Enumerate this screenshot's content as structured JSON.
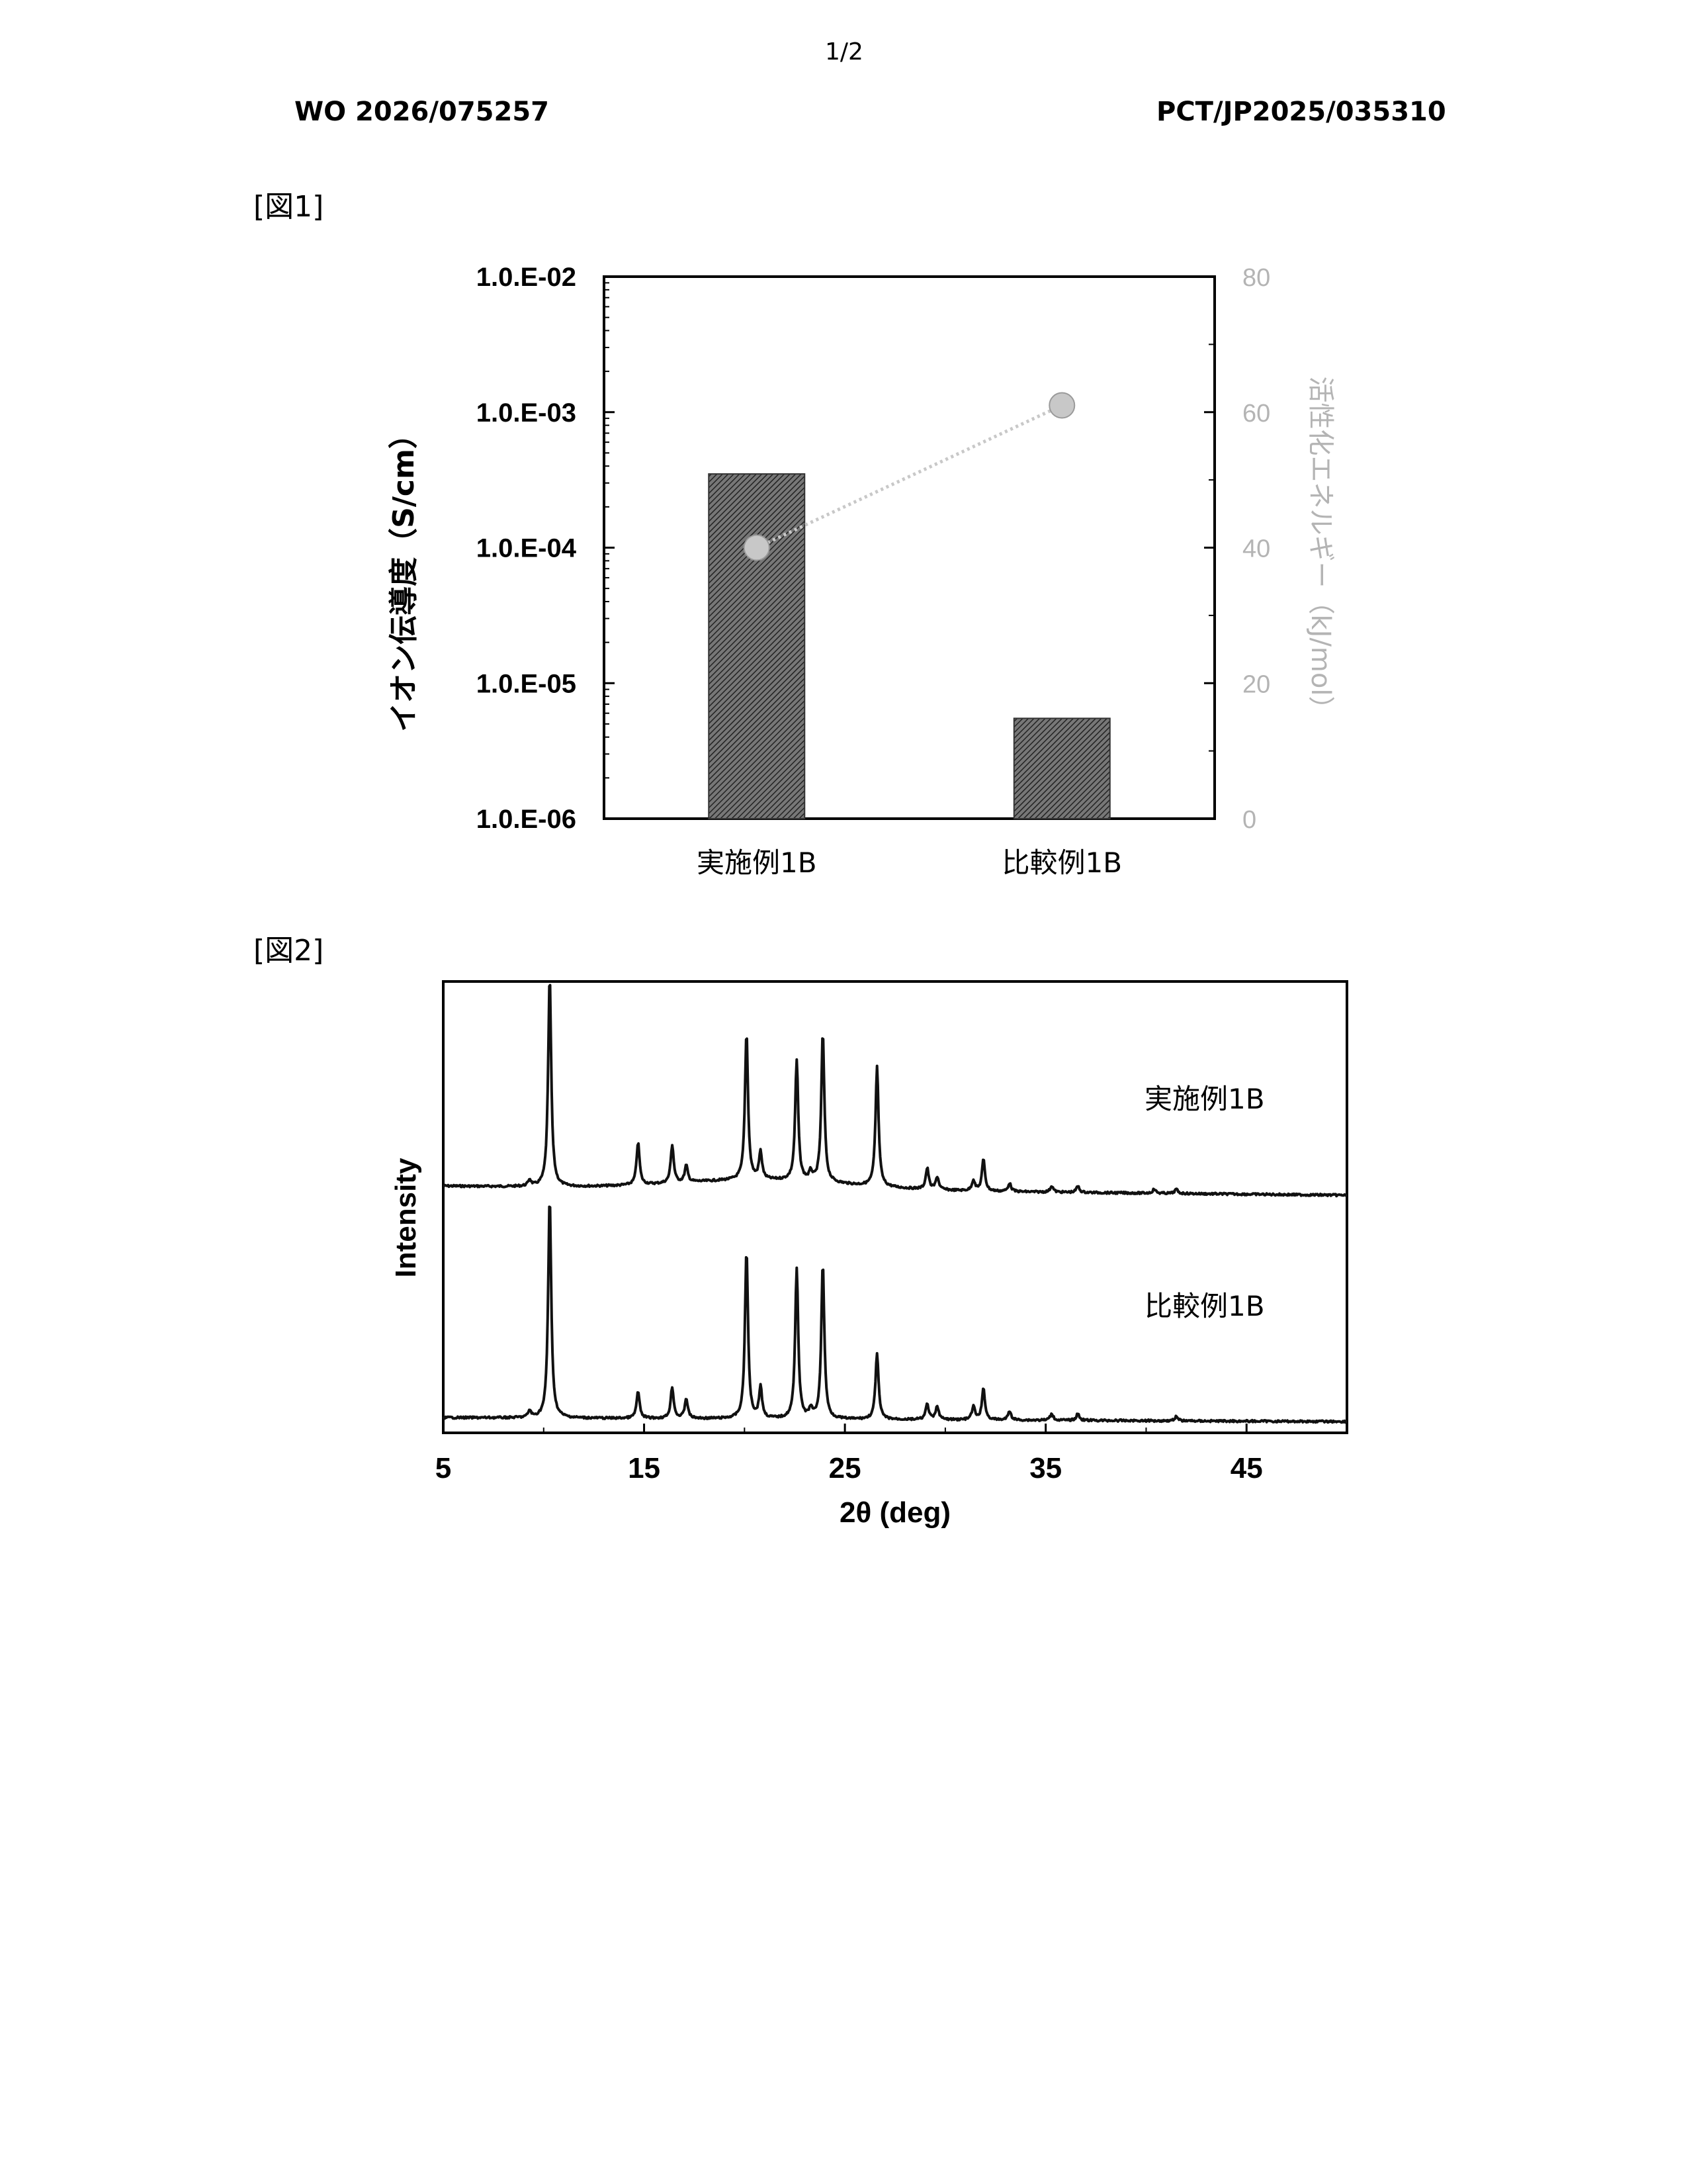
{
  "header": {
    "page_number": "1/2",
    "publication_number": "WO 2026/075257",
    "application_number": "PCT/JP2025/035310"
  },
  "figures": {
    "fig1_label": "[図1]",
    "fig2_label": "[図2]"
  },
  "colors": {
    "bar_fill": "#555555",
    "marker": "#c8c8c8",
    "secondary_axis": "#b4b4b4",
    "trace": "#111111"
  },
  "chart_data": [
    {
      "type": "bar",
      "categories": [
        "実施例1B",
        "比較例1B"
      ],
      "series": [
        {
          "values": [
            0.00035,
            5.5e-06
          ],
          "axis": "left",
          "style": "hatched bar"
        },
        {
          "values": [
            40,
            61
          ],
          "axis": "right",
          "style": "circle markers with dotted line"
        }
      ],
      "ylabel": "イオン伝導度（S/cm）",
      "y_scale": "log",
      "ylim": [
        1e-06,
        0.01
      ],
      "yticks": [
        "1.0.E-06",
        "1.0.E-05",
        "1.0.E-04",
        "1.0.E-03",
        "1.0.E-02"
      ],
      "y2label": "活性化エネルギー（kJ/mol）",
      "y2lim": [
        0,
        80
      ],
      "y2ticks": [
        "0",
        "20",
        "40",
        "60",
        "80"
      ]
    },
    {
      "type": "line",
      "xlabel": "2θ (deg)",
      "ylabel": "Intensity",
      "xlim": [
        5,
        50
      ],
      "xticks": [
        "5",
        "15",
        "25",
        "35",
        "45"
      ],
      "series": [
        {
          "name": "実施例1B",
          "peaks": [
            {
              "x": 9.3,
              "h": 0.03
            },
            {
              "x": 10.3,
              "h": 1.0
            },
            {
              "x": 14.7,
              "h": 0.2
            },
            {
              "x": 16.4,
              "h": 0.18
            },
            {
              "x": 17.1,
              "h": 0.08
            },
            {
              "x": 20.1,
              "h": 0.7
            },
            {
              "x": 20.8,
              "h": 0.13
            },
            {
              "x": 22.6,
              "h": 0.57
            },
            {
              "x": 23.3,
              "h": 0.04
            },
            {
              "x": 23.9,
              "h": 0.71
            },
            {
              "x": 26.6,
              "h": 0.57
            },
            {
              "x": 29.1,
              "h": 0.1
            },
            {
              "x": 29.6,
              "h": 0.06
            },
            {
              "x": 31.4,
              "h": 0.05
            },
            {
              "x": 31.9,
              "h": 0.15
            },
            {
              "x": 33.2,
              "h": 0.04
            },
            {
              "x": 35.3,
              "h": 0.03
            },
            {
              "x": 36.6,
              "h": 0.03
            },
            {
              "x": 40.4,
              "h": 0.02
            },
            {
              "x": 41.5,
              "h": 0.02
            }
          ]
        },
        {
          "name": "比較例1B",
          "peaks": [
            {
              "x": 9.3,
              "h": 0.03
            },
            {
              "x": 10.3,
              "h": 1.0
            },
            {
              "x": 14.7,
              "h": 0.12
            },
            {
              "x": 16.4,
              "h": 0.14
            },
            {
              "x": 17.1,
              "h": 0.09
            },
            {
              "x": 20.1,
              "h": 0.76
            },
            {
              "x": 20.8,
              "h": 0.14
            },
            {
              "x": 22.6,
              "h": 0.68
            },
            {
              "x": 23.3,
              "h": 0.04
            },
            {
              "x": 23.9,
              "h": 0.7
            },
            {
              "x": 26.6,
              "h": 0.3
            },
            {
              "x": 29.1,
              "h": 0.07
            },
            {
              "x": 29.6,
              "h": 0.06
            },
            {
              "x": 31.4,
              "h": 0.06
            },
            {
              "x": 31.9,
              "h": 0.14
            },
            {
              "x": 33.2,
              "h": 0.04
            },
            {
              "x": 35.3,
              "h": 0.03
            },
            {
              "x": 36.6,
              "h": 0.03
            },
            {
              "x": 41.5,
              "h": 0.02
            }
          ]
        }
      ],
      "grid": false
    }
  ]
}
